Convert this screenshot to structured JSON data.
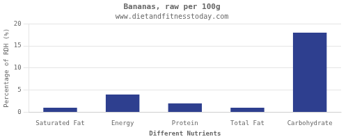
{
  "chart_data": {
    "type": "bar",
    "title": "Bananas, raw per 100g",
    "subtitle": "www.dietandfitnesstoday.com",
    "xlabel": "Different Nutrients",
    "ylabel": "Percentage of RDH (%)",
    "categories": [
      "Saturated Fat",
      "Energy",
      "Protein",
      "Total Fat",
      "Carbohydrate"
    ],
    "values": [
      1,
      4,
      2,
      1,
      18
    ],
    "color": "#2e3f8f",
    "ylim": [
      0,
      20
    ],
    "yticks": [
      0,
      5,
      10,
      15,
      20
    ],
    "grid": true
  }
}
